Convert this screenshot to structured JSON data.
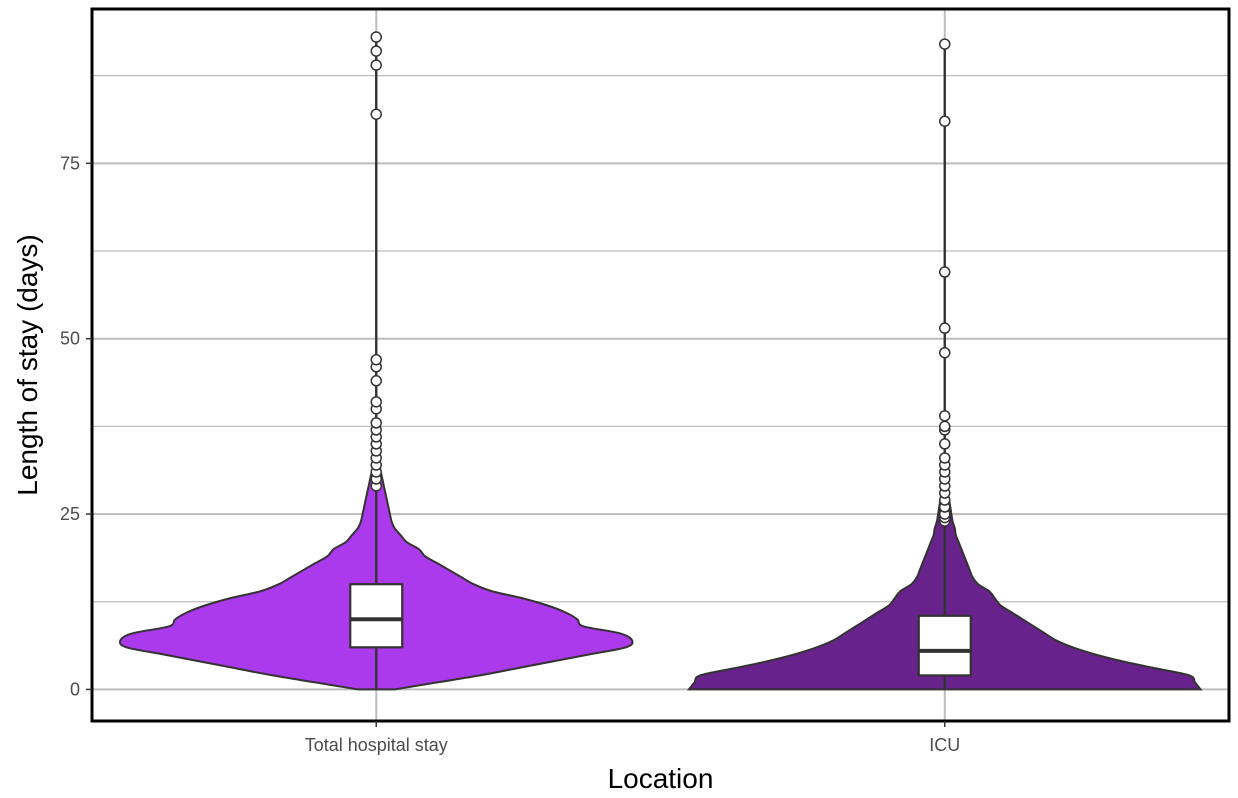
{
  "chart_data": {
    "type": "violin",
    "title": "",
    "xlabel": "Location",
    "ylabel": "Length of stay (days)",
    "ylim": [
      -4.5,
      97
    ],
    "yticks": [
      0,
      25,
      50,
      75
    ],
    "y_tick_labels": [
      "0",
      "25",
      "50",
      "75"
    ],
    "grid": true,
    "legend": "none",
    "categories": [
      "Total hospital stay",
      "ICU"
    ],
    "groups": [
      {
        "category": "Total hospital stay",
        "fill": "#ac3aed",
        "box": {
          "q1": 6,
          "median": 10,
          "q3": 15,
          "whisker_low": 0,
          "whisker_high": 28.5
        },
        "outliers": [
          29,
          30,
          31,
          32,
          33,
          34,
          35,
          36,
          37,
          38,
          40,
          41,
          44,
          46,
          47,
          82,
          89,
          91,
          93
        ],
        "density": [
          [
            0,
            0.03
          ],
          [
            1,
            0.1
          ],
          [
            2,
            0.17
          ],
          [
            3,
            0.23
          ],
          [
            4,
            0.29
          ],
          [
            5,
            0.35
          ],
          [
            6,
            0.41
          ],
          [
            7,
            0.42
          ],
          [
            8,
            0.4
          ],
          [
            9,
            0.34
          ],
          [
            10,
            0.33
          ],
          [
            11,
            0.31
          ],
          [
            12,
            0.28
          ],
          [
            13,
            0.24
          ],
          [
            14,
            0.19
          ],
          [
            15,
            0.16
          ],
          [
            16,
            0.14
          ],
          [
            17,
            0.12
          ],
          [
            18,
            0.1
          ],
          [
            19,
            0.08
          ],
          [
            20,
            0.07
          ],
          [
            21,
            0.05
          ],
          [
            22,
            0.04
          ],
          [
            23,
            0.03
          ],
          [
            24,
            0.025
          ],
          [
            26,
            0.02
          ],
          [
            28,
            0.015
          ],
          [
            30,
            0.01
          ],
          [
            32,
            0.005
          ],
          [
            34,
            0
          ]
        ]
      },
      {
        "category": "ICU",
        "fill": "#68228b",
        "box": {
          "q1": 2,
          "median": 5.5,
          "q3": 10.5,
          "whisker_low": 0,
          "whisker_high": 23.5
        },
        "outliers": [
          24,
          24.5,
          25,
          26,
          27,
          28,
          29,
          30,
          31,
          32,
          33,
          35,
          37,
          37.5,
          39,
          48,
          51.5,
          59.5,
          81,
          92
        ],
        "density": [
          [
            0,
            0.46
          ],
          [
            1,
            0.45
          ],
          [
            2,
            0.44
          ],
          [
            3,
            0.38
          ],
          [
            4,
            0.32
          ],
          [
            5,
            0.27
          ],
          [
            6,
            0.23
          ],
          [
            7,
            0.2
          ],
          [
            8,
            0.18
          ],
          [
            9,
            0.16
          ],
          [
            10,
            0.14
          ],
          [
            11,
            0.12
          ],
          [
            12,
            0.1
          ],
          [
            13,
            0.09
          ],
          [
            14,
            0.08
          ],
          [
            15,
            0.06
          ],
          [
            16,
            0.05
          ],
          [
            17,
            0.045
          ],
          [
            18,
            0.04
          ],
          [
            19,
            0.035
          ],
          [
            20,
            0.03
          ],
          [
            21,
            0.025
          ],
          [
            22,
            0.02
          ],
          [
            23,
            0.018
          ],
          [
            24,
            0.014
          ],
          [
            26,
            0.01
          ],
          [
            28,
            0.006
          ],
          [
            30,
            0.003
          ],
          [
            32,
            0
          ]
        ]
      }
    ]
  }
}
